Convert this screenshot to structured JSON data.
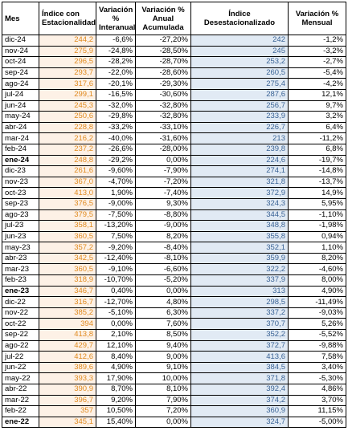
{
  "table": {
    "headers": [
      "Mes",
      "Índice con Estacionalidad",
      "Variación % Interanual",
      "Variación % Anual Acumulada",
      "Índice Desestacionalizado",
      "Variación % Mensual"
    ],
    "rows": [
      [
        "dic-24",
        "244,2",
        "-6,6%",
        "-27,20%",
        "242",
        "-1,2%"
      ],
      [
        "nov-24",
        "275,9",
        "-24,8%",
        "-28,50%",
        "245",
        "-3,2%"
      ],
      [
        "oct-24",
        "296,5",
        "-28,2%",
        "-28,70%",
        "253,2",
        "-2,7%"
      ],
      [
        "sep-24",
        "293,7",
        "-22,0%",
        "-28,60%",
        "260,5",
        "-5,4%"
      ],
      [
        "ago-24",
        "317,6",
        "-20,1%",
        "-29,30%",
        "275,4",
        "-4,2%"
      ],
      [
        "jul-24",
        "299,1",
        "-16,5%",
        "-30,60%",
        "287,6",
        "12,1%"
      ],
      [
        "jun-24",
        "245,3",
        "-32,0%",
        "-32,80%",
        "256,7",
        "9,7%"
      ],
      [
        "may-24",
        "250,6",
        "-29,8%",
        "-32,80%",
        "233,9",
        "3,2%"
      ],
      [
        "abr-24",
        "228,8",
        "-33,2%",
        "-33,10%",
        "226,7",
        "6,4%"
      ],
      [
        "mar-24",
        "216,2",
        "-40,0%",
        "-31,60%",
        "213",
        "-11,2%"
      ],
      [
        "feb-24",
        "237,2",
        "-26,6%",
        "-28,00%",
        "239,8",
        "6,8%"
      ],
      [
        "ene-24",
        "248,8",
        "-29,2%",
        "0,00%",
        "224,6",
        "-19,7%"
      ],
      [
        "dic-23",
        "261,6",
        "-9,60%",
        "-7,90%",
        "274,1",
        "-14,8%"
      ],
      [
        "nov-23",
        "367,0",
        "-4,70%",
        "-7,20%",
        "321,8",
        "-13,7%"
      ],
      [
        "oct-23",
        "413,0",
        "1,90%",
        "-7,40%",
        "372,9",
        "14,9%"
      ],
      [
        "sep-23",
        "376,5",
        "-9,00%",
        "9,30%",
        "324,3",
        "5,95%"
      ],
      [
        "ago-23",
        "379,5",
        "-7,50%",
        "-8,80%",
        "344,5",
        "-1,10%"
      ],
      [
        "jul-23",
        "358,1",
        "-13,20%",
        "-9,00%",
        "348,8",
        "-1,98%"
      ],
      [
        "jun-23",
        "360,5",
        "7,50%",
        "8,20%",
        "355,8",
        "0,94%"
      ],
      [
        "may-23",
        "357,2",
        "-9,20%",
        "-8,40%",
        "352,1",
        "1,10%"
      ],
      [
        "abr-23",
        "342,5",
        "-12,40%",
        "-8,10%",
        "359,9",
        "8,20%"
      ],
      [
        "mar-23",
        "360,5",
        "-9,10%",
        "-6,60%",
        "322,2",
        "-4,60%"
      ],
      [
        "feb-23",
        "318,9",
        "-10,70%",
        "-5,20%",
        "337,9",
        "8,00%"
      ],
      [
        "ene-23",
        "346,7",
        "0,40%",
        "0,00%",
        "313",
        "4,90%"
      ],
      [
        "dic-22",
        "316,7",
        "-12,70%",
        "4,80%",
        "298,5",
        "-11,49%"
      ],
      [
        "nov-22",
        "385,2",
        "-5,10%",
        "6,30%",
        "337,2",
        "-9,03%"
      ],
      [
        "oct-22",
        "394",
        "0,00%",
        "7,60%",
        "370,7",
        "5,26%"
      ],
      [
        "sep-22",
        "413,8",
        "2,10%",
        "8,50%",
        "352,2",
        "-5,52%"
      ],
      [
        "ago-22",
        "429,7",
        "12,10%",
        "9,40%",
        "372,7",
        "-9,88%"
      ],
      [
        "jul-22",
        "412,6",
        "8,40%",
        "9,00%",
        "413,6",
        "7,58%"
      ],
      [
        "jun-22",
        "389,6",
        "4,90%",
        "9,10%",
        "384,5",
        "3,40%"
      ],
      [
        "may-22",
        "393,3",
        "17,90%",
        "10,00%",
        "371,8",
        "-5,30%"
      ],
      [
        "abr-22",
        "390,9",
        "8,70%",
        "8,10%",
        "392,4",
        "4,86%"
      ],
      [
        "mar-22",
        "396,7",
        "9,20%",
        "7,90%",
        "374,2",
        "3,70%"
      ],
      [
        "feb-22",
        "357",
        "10,50%",
        "7,20%",
        "360,9",
        "11,15%"
      ],
      [
        "ene-22",
        "345,1",
        "15,40%",
        "0,00%",
        "324,7",
        "-5,00%"
      ]
    ]
  }
}
